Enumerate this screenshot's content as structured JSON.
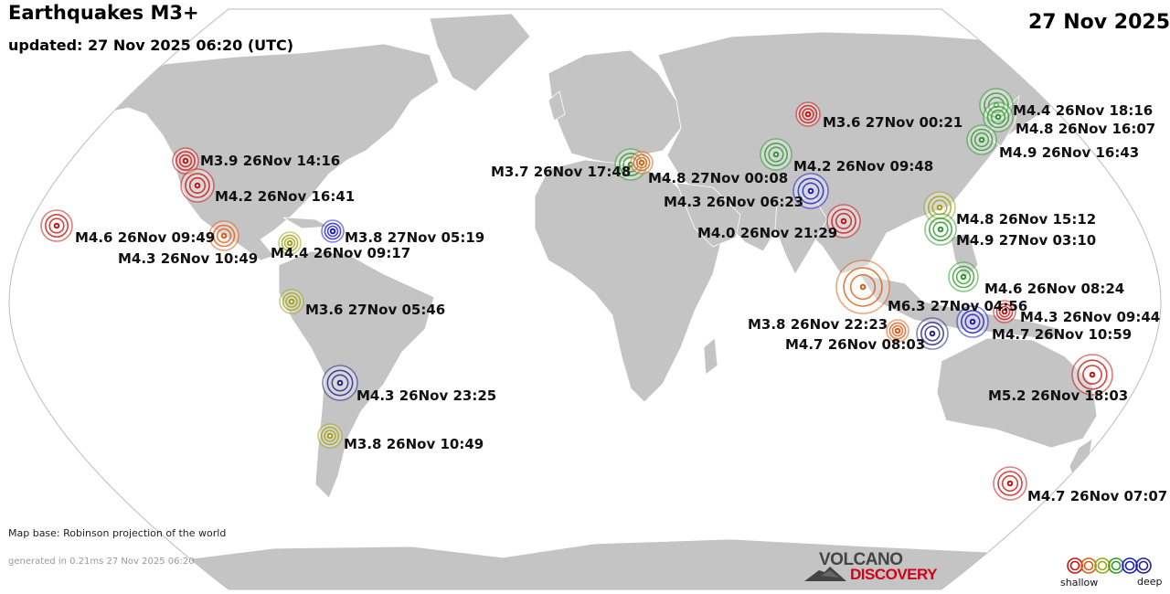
{
  "header": {
    "title": "Earthquakes M3+",
    "updated": "updated: 27 Nov 2025 06:20 (UTC)",
    "date": "27 Nov 2025"
  },
  "footer": {
    "map_base": "Map base: Robinson projection of the world",
    "generated": "generated in 0.21ms 27 Nov 2025 06:20"
  },
  "logo": {
    "line1": "VOLCANO",
    "line2": "DISCOVERY"
  },
  "legend": {
    "shallow": "shallow",
    "deep": "deep",
    "colors": [
      "#cc1111",
      "#e05a10",
      "#a0a010",
      "#2a9a2a",
      "#1a1acc",
      "#222288"
    ]
  },
  "colors": {
    "ocean": "#ffffff",
    "land": "#c4c4c4",
    "outline": "#bbbbbb"
  },
  "quakes": [
    {
      "label": "M3.6 27Nov 00:21",
      "color": "#cc1111"
    },
    {
      "label": "M4.4 26Nov 18:16",
      "color": "#2a9a2a"
    },
    {
      "label": "M4.8 26Nov 16:07",
      "color": "#2a9a2a"
    },
    {
      "label": "M4.9 26Nov 16:43",
      "color": "#2a9a2a"
    },
    {
      "label": "M3.9 26Nov 14:16",
      "color": "#cc1111"
    },
    {
      "label": "M4.2 26Nov 16:41",
      "color": "#cc1111"
    },
    {
      "label": "M3.7 26Nov 17:48",
      "color": "#2a9a2a"
    },
    {
      "label": "M4.8 27Nov 00:08",
      "color": "#e05a10"
    },
    {
      "label": "M4.2 26Nov 09:48",
      "color": "#2a9a2a"
    },
    {
      "label": "M4.3 26Nov 06:23",
      "color": "#1a1acc"
    },
    {
      "label": "M4.8 26Nov 15:12",
      "color": "#a0a010"
    },
    {
      "label": "M4.0 26Nov 21:29",
      "color": "#cc1111"
    },
    {
      "label": "M4.9 27Nov 03:10",
      "color": "#2a9a2a"
    },
    {
      "label": "M4.6 26Nov 09:49",
      "color": "#cc1111"
    },
    {
      "label": "M3.8 27Nov 05:19",
      "color": "#1a1acc"
    },
    {
      "label": "M4.3 26Nov 10:49",
      "color": "#e05a10"
    },
    {
      "label": "M4.4 26Nov 09:17",
      "color": "#a0a010"
    },
    {
      "label": "M4.6 26Nov 08:24",
      "color": "#2a9a2a"
    },
    {
      "label": "M6.3 27Nov 04:56",
      "color": "#e05a10"
    },
    {
      "label": "M4.3 26Nov 09:44",
      "color": "#cc1111"
    },
    {
      "label": "M3.8 26Nov 22:23",
      "color": "#e05a10"
    },
    {
      "label": "M4.7 26Nov 10:59",
      "color": "#1a1acc"
    },
    {
      "label": "M4.7 26Nov 08:03",
      "color": "#222288"
    },
    {
      "label": "M3.6 27Nov 05:46",
      "color": "#a0a010"
    },
    {
      "label": "M4.3 26Nov 23:25",
      "color": "#222288"
    },
    {
      "label": "M5.2 26Nov 18:03",
      "color": "#cc1111"
    },
    {
      "label": "M3.8 26Nov 10:49",
      "color": "#a0a010"
    },
    {
      "label": "M4.7 26Nov 07:07",
      "color": "#cc1111"
    }
  ]
}
